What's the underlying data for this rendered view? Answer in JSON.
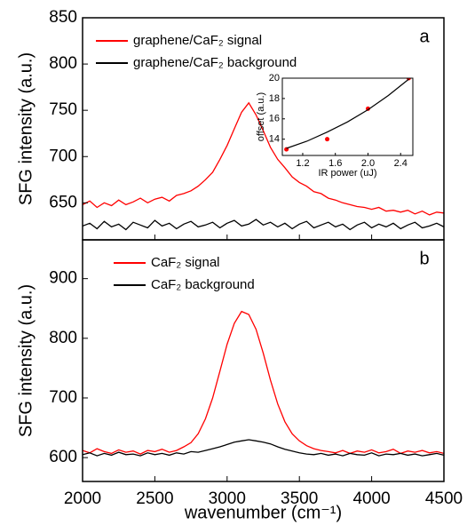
{
  "chart_data": [
    {
      "type": "line",
      "panel_label": "a",
      "ylabel": "SFG intensity (a.u.)",
      "legend": "upper left",
      "xlim": [
        2000,
        4500
      ],
      "ylim": [
        610,
        850
      ],
      "yticks": [
        650,
        700,
        750,
        800,
        850
      ],
      "x": [
        2000,
        2050,
        2100,
        2150,
        2200,
        2250,
        2300,
        2350,
        2400,
        2450,
        2500,
        2550,
        2600,
        2650,
        2700,
        2750,
        2800,
        2850,
        2900,
        2950,
        3000,
        3050,
        3100,
        3150,
        3200,
        3250,
        3300,
        3350,
        3400,
        3450,
        3500,
        3550,
        3600,
        3650,
        3700,
        3750,
        3800,
        3850,
        3900,
        3950,
        4000,
        4050,
        4100,
        4150,
        4200,
        4250,
        4300,
        4350,
        4400,
        4450,
        4500
      ],
      "series": [
        {
          "name": "graphene/CaF₂ signal",
          "color": "#ff0000",
          "values": [
            648,
            652,
            645,
            650,
            647,
            653,
            648,
            651,
            655,
            650,
            654,
            656,
            652,
            658,
            660,
            663,
            668,
            675,
            683,
            697,
            712,
            730,
            748,
            758,
            745,
            728,
            710,
            697,
            688,
            678,
            672,
            668,
            662,
            660,
            655,
            653,
            650,
            648,
            646,
            645,
            643,
            645,
            641,
            642,
            640,
            642,
            638,
            641,
            637,
            640,
            639
          ]
        },
        {
          "name": "graphene/CaF₂ background",
          "color": "#000000",
          "values": [
            625,
            628,
            622,
            630,
            624,
            627,
            621,
            629,
            626,
            623,
            631,
            625,
            628,
            622,
            627,
            630,
            624,
            626,
            629,
            623,
            628,
            631,
            625,
            627,
            632,
            626,
            629,
            624,
            628,
            622,
            627,
            630,
            623,
            626,
            629,
            624,
            627,
            621,
            626,
            629,
            623,
            627,
            624,
            628,
            622,
            626,
            629,
            623,
            625,
            628,
            624
          ]
        }
      ]
    },
    {
      "type": "line",
      "panel_label": "b",
      "ylabel": "SFG intensity (a.u.)",
      "xlabel": "wavenumber (cm⁻¹)",
      "legend": "upper left",
      "xlim": [
        2000,
        4500
      ],
      "xticks": [
        2000,
        2500,
        3000,
        3500,
        4000,
        4500
      ],
      "ylim": [
        560,
        965
      ],
      "yticks": [
        600,
        700,
        800,
        900
      ],
      "x": [
        2000,
        2050,
        2100,
        2150,
        2200,
        2250,
        2300,
        2350,
        2400,
        2450,
        2500,
        2550,
        2600,
        2650,
        2700,
        2750,
        2800,
        2850,
        2900,
        2950,
        3000,
        3050,
        3100,
        3150,
        3200,
        3250,
        3300,
        3350,
        3400,
        3450,
        3500,
        3550,
        3600,
        3650,
        3700,
        3750,
        3800,
        3850,
        3900,
        3950,
        4000,
        4050,
        4100,
        4150,
        4200,
        4250,
        4300,
        4350,
        4400,
        4450,
        4500
      ],
      "series": [
        {
          "name": "CaF₂ signal",
          "color": "#ff0000",
          "values": [
            612,
            608,
            615,
            610,
            607,
            613,
            609,
            611,
            606,
            612,
            610,
            614,
            609,
            612,
            618,
            625,
            640,
            665,
            700,
            745,
            790,
            825,
            845,
            840,
            815,
            775,
            730,
            690,
            660,
            640,
            628,
            620,
            615,
            612,
            610,
            608,
            612,
            607,
            611,
            609,
            613,
            608,
            610,
            614,
            607,
            611,
            609,
            612,
            608,
            610,
            607
          ]
        },
        {
          "name": "CaF₂ background",
          "color": "#000000",
          "values": [
            605,
            608,
            603,
            607,
            604,
            609,
            605,
            606,
            603,
            608,
            605,
            607,
            604,
            608,
            606,
            610,
            609,
            612,
            615,
            618,
            622,
            626,
            628,
            630,
            628,
            626,
            623,
            618,
            614,
            611,
            608,
            606,
            605,
            607,
            604,
            606,
            603,
            607,
            605,
            604,
            608,
            603,
            606,
            605,
            607,
            604,
            606,
            603,
            605,
            607,
            604
          ]
        }
      ]
    },
    {
      "type": "scatter",
      "xlabel": "IR power (uJ)",
      "ylabel": "offset (a.u.)",
      "xlim": [
        0.95,
        2.55
      ],
      "xticks": [
        1.2,
        1.6,
        {
          "value": 2.0,
          "label": "2.0"
        },
        2.4
      ],
      "ylim": [
        12.4,
        20
      ],
      "yticks": [
        14,
        16,
        18,
        20
      ],
      "series": [
        {
          "type": "scatter",
          "color": "#ff0000",
          "x": [
            1.0,
            1.5,
            2.0,
            2.5
          ],
          "values": [
            13,
            14,
            17,
            20
          ]
        },
        {
          "type": "line",
          "color": "#000000",
          "x": [
            1.0,
            1.25,
            1.5,
            1.75,
            2.0,
            2.25,
            2.5
          ],
          "values": [
            13.1,
            13.8,
            14.7,
            15.7,
            16.9,
            18.3,
            19.9
          ]
        }
      ]
    }
  ]
}
